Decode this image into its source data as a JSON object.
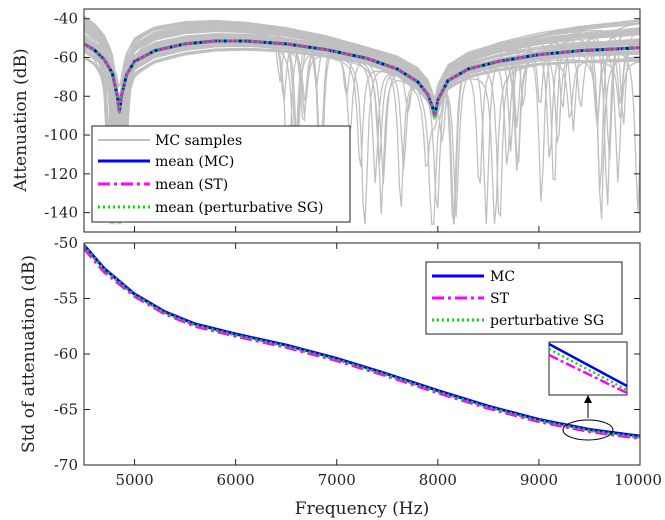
{
  "chart_data": [
    {
      "type": "line",
      "ylabel": "Attenuation (dB)",
      "xlim": [
        4500,
        10000
      ],
      "ylim": [
        -150,
        -35
      ],
      "yticks": [
        -40,
        -60,
        -80,
        -100,
        -120,
        -140
      ],
      "grid": false,
      "legend": {
        "placement": "bottom-left",
        "entries": [
          "MC samples",
          "mean (MC)",
          "mean (ST)",
          "mean (perturbative SG)"
        ]
      },
      "series": [
        {
          "name": "mean (MC)",
          "color": "#0000ff",
          "style": "solid",
          "x": [
            4500,
            4600,
            4700,
            4780,
            4830,
            4850,
            4870,
            4920,
            5000,
            5200,
            5500,
            5800,
            6100,
            6500,
            6900,
            7300,
            7600,
            7800,
            7900,
            7950,
            7970,
            8000,
            8100,
            8300,
            8600,
            9000,
            9400,
            9800,
            10000
          ],
          "y": [
            -53,
            -56,
            -61,
            -68,
            -80,
            -88,
            -80,
            -69,
            -62,
            -56.5,
            -53,
            -51.5,
            -51.5,
            -53,
            -56,
            -60.5,
            -66,
            -72.5,
            -79,
            -86,
            -90,
            -82,
            -72,
            -66,
            -62,
            -58.5,
            -56.5,
            -55.5,
            -55
          ]
        },
        {
          "name": "mean (ST)",
          "color": "#ff00ff",
          "style": "dash-dot",
          "x": [
            4500,
            4600,
            4700,
            4780,
            4830,
            4850,
            4870,
            4920,
            5000,
            5200,
            5500,
            5800,
            6100,
            6500,
            6900,
            7300,
            7600,
            7800,
            7900,
            7950,
            7970,
            8000,
            8100,
            8300,
            8600,
            9000,
            9400,
            9800,
            10000
          ],
          "y": [
            -53,
            -56,
            -61,
            -68,
            -80,
            -88,
            -80,
            -69,
            -62,
            -56.5,
            -53,
            -51.5,
            -51.5,
            -53,
            -56,
            -60.5,
            -66,
            -72.5,
            -79,
            -86,
            -90,
            -82,
            -72,
            -66,
            -62,
            -58.5,
            -56.5,
            -55.5,
            -55
          ]
        },
        {
          "name": "mean (perturbative SG)",
          "color": "#00dd00",
          "style": "dotted",
          "x": [
            4500,
            4600,
            4700,
            4780,
            4830,
            4850,
            4870,
            4920,
            5000,
            5200,
            5500,
            5800,
            6100,
            6500,
            6900,
            7300,
            7600,
            7800,
            7900,
            7950,
            7970,
            8000,
            8100,
            8300,
            8600,
            9000,
            9400,
            9800,
            10000
          ],
          "y": [
            -53,
            -56,
            -61,
            -68,
            -80,
            -88,
            -80,
            -69,
            -62,
            -56.5,
            -53,
            -51.5,
            -51.5,
            -53,
            -56,
            -60.5,
            -66,
            -72.5,
            -79,
            -86,
            -90,
            -82,
            -72,
            -66,
            -62,
            -58.5,
            -56.5,
            -55.5,
            -55
          ]
        }
      ],
      "mc_samples": {
        "name": "MC samples",
        "color": "#c0c0c0",
        "count": 60,
        "note_range": [
          -146,
          -37
        ]
      }
    },
    {
      "type": "line",
      "xlabel": "Frequency (Hz)",
      "ylabel": "Std of attenuation (dB)",
      "xlim": [
        4500,
        10000
      ],
      "ylim": [
        -70,
        -50
      ],
      "xticks": [
        5000,
        6000,
        7000,
        8000,
        9000,
        10000
      ],
      "yticks": [
        -50,
        -55,
        -60,
        -65,
        -70
      ],
      "grid": false,
      "legend": {
        "placement": "top-right",
        "entries": [
          "MC",
          "ST",
          "perturbative SG"
        ]
      },
      "series": [
        {
          "name": "MC",
          "color": "#0000ff",
          "style": "solid",
          "x": [
            4500,
            4700,
            5000,
            5300,
            5600,
            6000,
            6500,
            7000,
            7500,
            8000,
            8500,
            9000,
            9500,
            10000
          ],
          "y": [
            -50.2,
            -52.3,
            -54.6,
            -56.2,
            -57.3,
            -58.2,
            -59.2,
            -60.4,
            -61.8,
            -63.3,
            -64.7,
            -65.9,
            -66.8,
            -67.4
          ]
        },
        {
          "name": "ST",
          "color": "#ff00ff",
          "style": "dash-dot",
          "x": [
            4500,
            4700,
            5000,
            5300,
            5600,
            6000,
            6500,
            7000,
            7500,
            8000,
            8500,
            9000,
            9500,
            10000
          ],
          "y": [
            -50.5,
            -52.6,
            -54.8,
            -56.4,
            -57.5,
            -58.4,
            -59.4,
            -60.6,
            -62.0,
            -63.5,
            -64.9,
            -66.1,
            -67.0,
            -67.6
          ]
        },
        {
          "name": "perturbative SG",
          "color": "#00dd00",
          "style": "dotted",
          "x": [
            4500,
            4700,
            5000,
            5300,
            5600,
            6000,
            6500,
            7000,
            7500,
            8000,
            8500,
            9000,
            9500,
            10000
          ],
          "y": [
            -50.3,
            -52.4,
            -54.7,
            -56.3,
            -57.4,
            -58.3,
            -59.3,
            -60.5,
            -61.9,
            -63.4,
            -64.8,
            -66.0,
            -66.9,
            -67.5
          ]
        }
      ],
      "annotation": {
        "type": "zoom-inset",
        "target_x": 9500,
        "target_y": -66.8
      }
    }
  ]
}
